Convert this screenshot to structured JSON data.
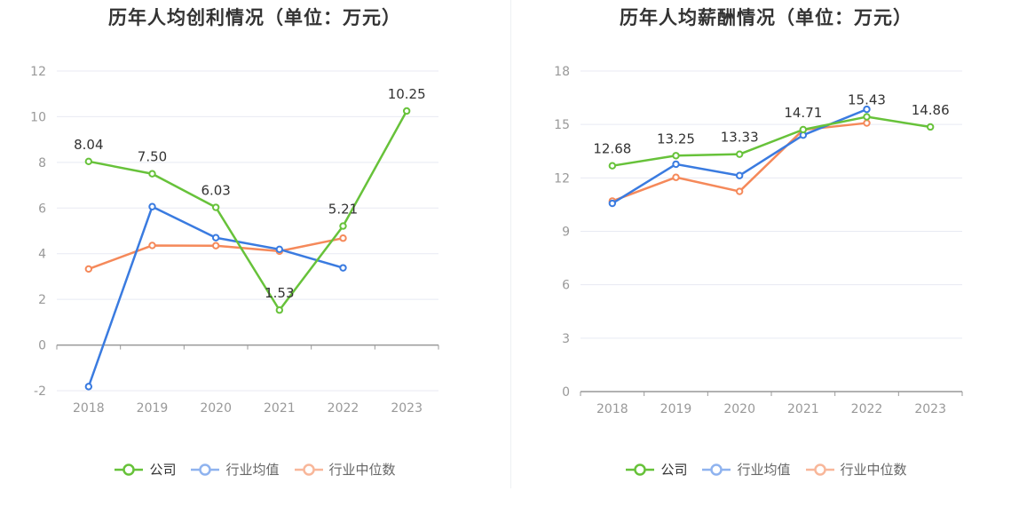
{
  "legend": [
    "公司",
    "行业均值",
    "行业中位数"
  ],
  "colors": {
    "company": "#67c23a",
    "mean": "#3a7be0",
    "median": "#f5895a",
    "grid": "#e8eaf3",
    "axis": "#999999"
  },
  "chart_data": [
    {
      "type": "line",
      "title": "历年人均创利情况（单位：万元）",
      "categories": [
        "2018",
        "2019",
        "2020",
        "2021",
        "2022",
        "2023"
      ],
      "ylim": [
        -2,
        12
      ],
      "yticks": [
        -2,
        0,
        2,
        4,
        6,
        8,
        10,
        12
      ],
      "series": [
        {
          "name": "公司",
          "values": [
            8.04,
            7.5,
            6.03,
            1.53,
            5.21,
            10.25
          ],
          "labels": [
            "8.04",
            "7.50",
            "6.03",
            "1.53",
            "5.21",
            "10.25"
          ]
        },
        {
          "name": "行业均值",
          "values": [
            -1.82,
            6.06,
            4.7,
            4.19,
            3.38,
            null
          ]
        },
        {
          "name": "行业中位数",
          "values": [
            3.33,
            4.36,
            4.35,
            4.11,
            4.68,
            null
          ]
        }
      ]
    },
    {
      "type": "line",
      "title": "历年人均薪酬情况（单位：万元）",
      "categories": [
        "2018",
        "2019",
        "2020",
        "2021",
        "2022",
        "2023"
      ],
      "ylim": [
        0,
        18
      ],
      "yticks": [
        0,
        3,
        6,
        9,
        12,
        15,
        18
      ],
      "series": [
        {
          "name": "公司",
          "values": [
            12.68,
            13.25,
            13.33,
            14.71,
            15.43,
            14.86
          ],
          "labels": [
            "12.68",
            "13.25",
            "13.33",
            "14.71",
            "15.43",
            "14.86"
          ]
        },
        {
          "name": "行业均值",
          "values": [
            10.57,
            12.77,
            12.13,
            14.4,
            15.85,
            null
          ]
        },
        {
          "name": "行业中位数",
          "values": [
            10.7,
            12.03,
            11.24,
            14.7,
            15.08,
            null
          ]
        }
      ]
    }
  ]
}
